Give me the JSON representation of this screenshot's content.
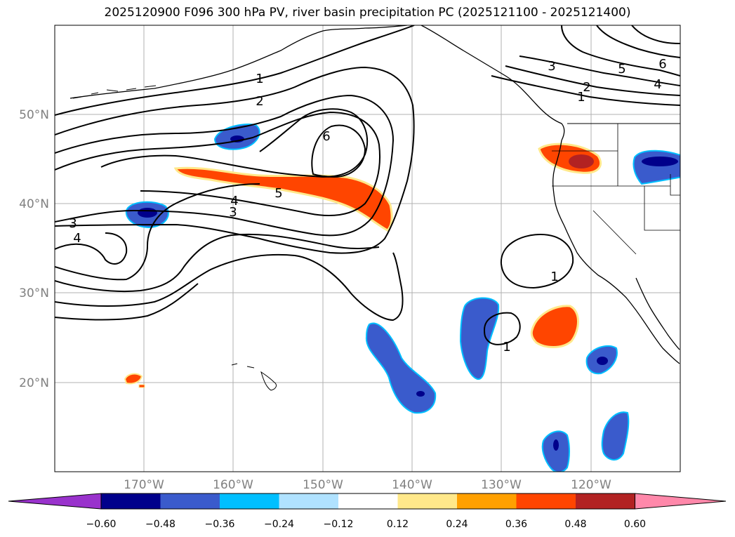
{
  "title": "2025120900 F096 300 hPa PV, river basin precipitation PC (2025121100 - 2025121400)",
  "map": {
    "lat_labels": [
      "50°N",
      "40°N",
      "30°N",
      "20°N"
    ],
    "lon_labels": [
      "170°W",
      "160°W",
      "150°W",
      "140°W",
      "130°W",
      "120°W"
    ],
    "contour_labels": [
      "1",
      "2",
      "6",
      "5",
      "4",
      "3",
      "3",
      "4",
      "1",
      "1",
      "3",
      "5",
      "6",
      "4",
      "2",
      "1"
    ]
  },
  "colorbar": {
    "tick_labels": [
      "−0.60",
      "−0.48",
      "−0.36",
      "−0.24",
      "−0.12",
      "0.12",
      "0.24",
      "0.36",
      "0.48",
      "0.60"
    ],
    "colors": [
      "#9932CC",
      "#00008B",
      "#3A5BCC",
      "#00BFFF",
      "#B0E2FF",
      "#FFFFFF",
      "#FFE88A",
      "#FFA000",
      "#FF4500",
      "#B22222",
      "#FF88AA"
    ]
  }
}
